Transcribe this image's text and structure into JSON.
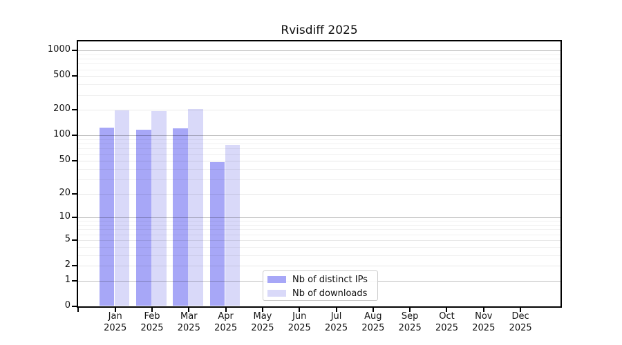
{
  "chart_data": {
    "type": "bar",
    "title": "Rvisdiff 2025",
    "year_label": "2025",
    "categories": [
      "Jan",
      "Feb",
      "Mar",
      "Apr",
      "May",
      "Jun",
      "Jul",
      "Aug",
      "Sep",
      "Oct",
      "Nov",
      "Dec"
    ],
    "series": [
      {
        "name": "Nb of distinct IPs",
        "color": "#a7a7f7",
        "values": [
          123,
          118,
          122,
          48,
          0,
          0,
          0,
          0,
          0,
          0,
          0,
          0
        ]
      },
      {
        "name": "Nb of downloads",
        "color": "#d9d9f9",
        "values": [
          197,
          194,
          205,
          77,
          0,
          0,
          0,
          0,
          0,
          0,
          0,
          0
        ]
      }
    ],
    "yticks": [
      0,
      1,
      2,
      5,
      10,
      20,
      50,
      100,
      200,
      500,
      1000
    ],
    "minor_yticks": [
      3,
      4,
      6,
      7,
      8,
      9,
      30,
      40,
      60,
      70,
      80,
      90,
      300,
      400,
      600,
      700,
      800,
      900
    ],
    "scale": "log1p",
    "ylim": [
      0,
      1500
    ],
    "xlabel": "",
    "ylabel": "",
    "grid": true,
    "legend_position": "bottom-center"
  },
  "colors": {
    "background": "#ffffff",
    "spine": "#000000",
    "grid_major": "rgba(0,0,0,0.26)",
    "grid_mid": "rgba(0,0,0,0.09)",
    "grid_minor": "rgba(0,0,0,0.06)",
    "text": "#111111"
  }
}
